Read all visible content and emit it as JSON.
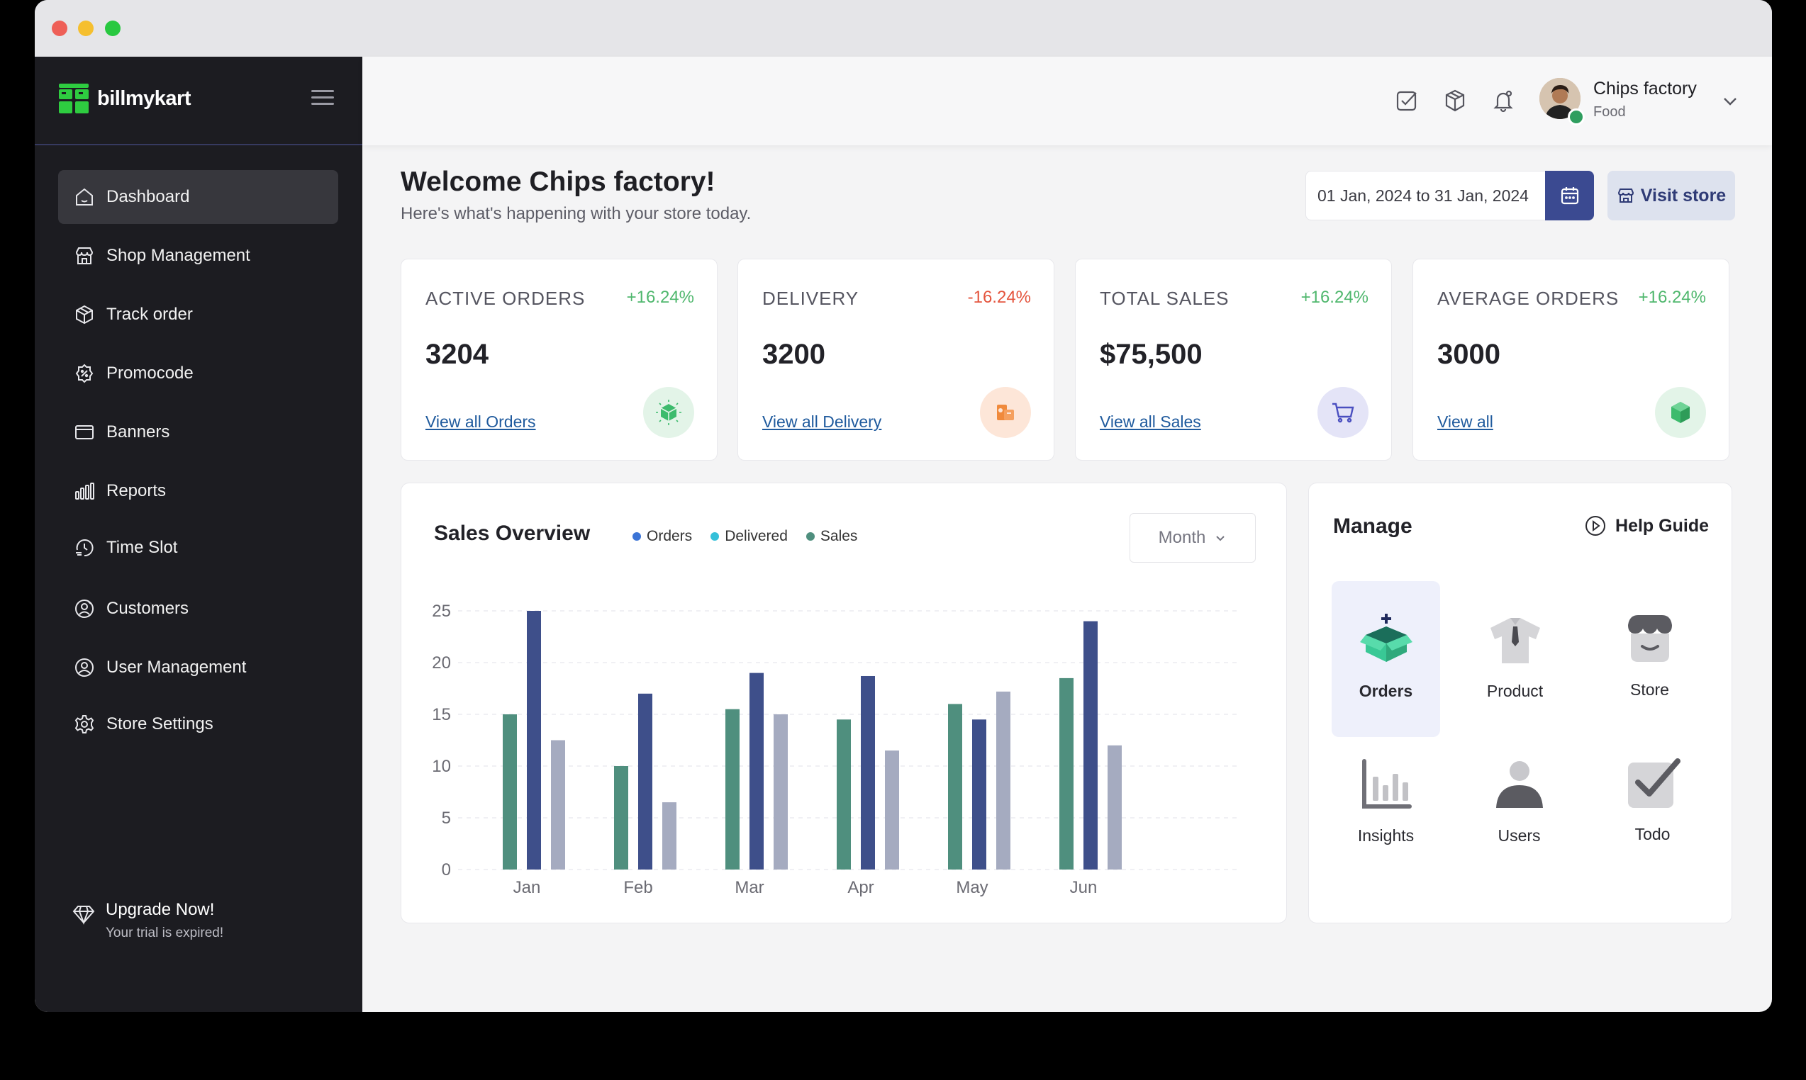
{
  "brand": {
    "name": "billmykart"
  },
  "sidebar": {
    "items": [
      {
        "label": "Dashboard",
        "icon": "home-icon",
        "active": true
      },
      {
        "label": "Shop Management",
        "icon": "shop-icon"
      },
      {
        "label": "Track order",
        "icon": "box-icon"
      },
      {
        "label": "Promocode",
        "icon": "discount-badge-icon"
      },
      {
        "label": "Banners",
        "icon": "card-icon"
      },
      {
        "label": "Reports",
        "icon": "bar-chart-icon"
      },
      {
        "label": "Time Slot",
        "icon": "clock-icon"
      },
      {
        "label": "Customers",
        "icon": "customer-icon"
      },
      {
        "label": "User Management",
        "icon": "user-circle-icon"
      },
      {
        "label": "Store Settings",
        "icon": "gear-icon"
      }
    ],
    "upgrade": {
      "title": "Upgrade Now!",
      "subtitle": "Your trial is expired!",
      "icon": "diamond-icon"
    }
  },
  "header": {
    "icons": [
      "checkbox-icon",
      "package-icon",
      "bell-icon"
    ],
    "user": {
      "name": "Chips factory",
      "role": "Food",
      "status_color": "#2f9e5f"
    }
  },
  "main": {
    "welcome": "Welcome Chips factory!",
    "subtitle": "Here's what's happening with your store today.",
    "date_range": "01 Jan, 2024 to 31 Jan, 2024",
    "visit_store": "Visit store"
  },
  "cards": [
    {
      "title": "ACTIVE ORDERS",
      "delta": "+16.24%",
      "trend": "up",
      "value": "3204",
      "link": "View all Orders",
      "icon": "box-sparkle-icon",
      "icon_bg": "#e3f4e8"
    },
    {
      "title": "DELIVERY",
      "delta": "-16.24%",
      "trend": "down",
      "value": "3200",
      "link": "View all Delivery",
      "icon": "delivery-box-icon",
      "icon_bg": "#fde6d8"
    },
    {
      "title": "TOTAL SALES",
      "delta": "+16.24%",
      "trend": "up",
      "value": "$75,500",
      "link": "View all Sales",
      "icon": "cart-icon",
      "icon_bg": "#e4e4f7"
    },
    {
      "title": "AVERAGE ORDERS",
      "delta": "+16.24%",
      "trend": "up",
      "value": "3000",
      "link": "View all",
      "icon": "cube-icon",
      "icon_bg": "#e3f4e8"
    }
  ],
  "sales_overview": {
    "title": "Sales Overview",
    "legend": [
      {
        "name": "Orders",
        "color": "#3b74d6"
      },
      {
        "name": "Delivered",
        "color": "#35c0d9"
      },
      {
        "name": "Sales",
        "color": "#4f8f7e"
      }
    ],
    "period": "Month"
  },
  "chart_data": {
    "type": "bar",
    "categories": [
      "Jan",
      "Feb",
      "Mar",
      "Apr",
      "May",
      "Jun"
    ],
    "series": [
      {
        "color": "#4f8f7e",
        "values": [
          15,
          10,
          15.5,
          14.5,
          16,
          18.5
        ]
      },
      {
        "color": "#3e4f8a",
        "values": [
          25,
          17,
          19,
          18.7,
          14.5,
          24
        ]
      },
      {
        "color": "#a5abc0",
        "values": [
          12.5,
          6.5,
          15,
          11.5,
          17.2,
          12
        ]
      }
    ],
    "yticks": [
      0,
      5,
      10,
      15,
      20,
      25
    ],
    "ylim": [
      0,
      25
    ],
    "grid": true
  },
  "manage": {
    "title": "Manage",
    "help": "Help Guide",
    "tiles": [
      {
        "label": "Orders",
        "icon": "orders-box-icon",
        "active": true
      },
      {
        "label": "Product",
        "icon": "shirt-icon"
      },
      {
        "label": "Store",
        "icon": "store-icon"
      },
      {
        "label": "Insights",
        "icon": "insights-icon"
      },
      {
        "label": "Users",
        "icon": "user-icon"
      },
      {
        "label": "Todo",
        "icon": "todo-check-icon"
      }
    ]
  }
}
